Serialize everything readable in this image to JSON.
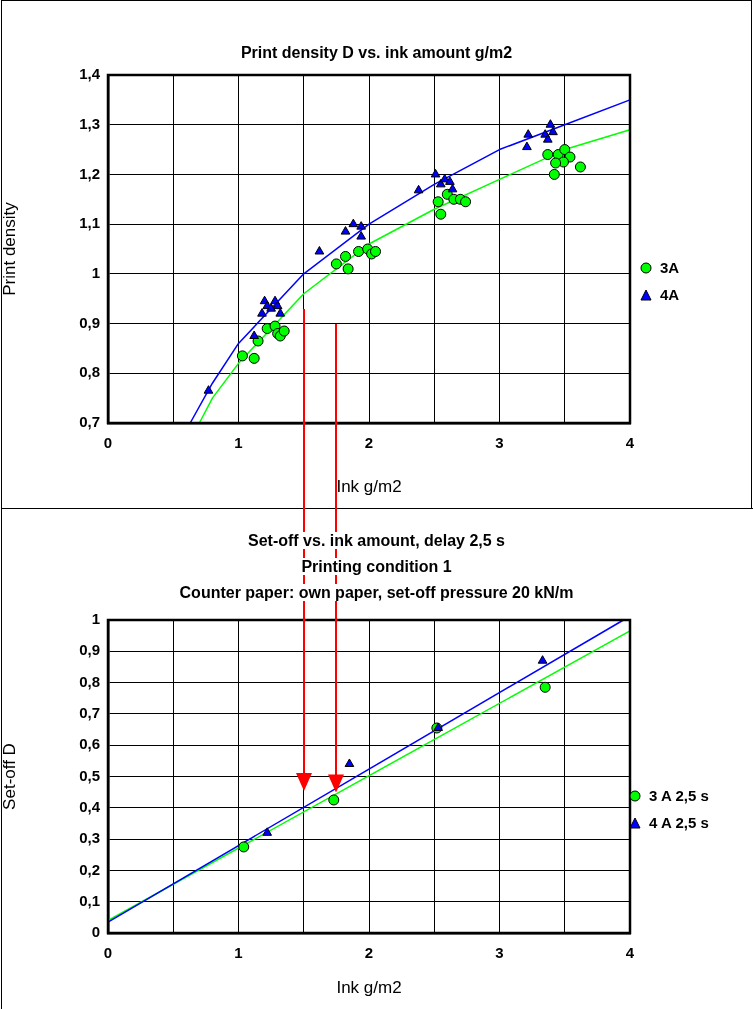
{
  "chart_data": [
    {
      "type": "scatter",
      "title": "Print density D vs. ink amount g/m2",
      "xlabel": "Ink g/m2",
      "ylabel": "Print density",
      "xlim": [
        0,
        4
      ],
      "xticks": [
        0,
        {
          "value": 0.5,
          "label": null
        },
        1,
        {
          "value": 1.5,
          "label": null
        },
        2,
        {
          "value": 2.5,
          "label": null
        },
        3,
        {
          "value": 3.5,
          "label": null
        },
        4
      ],
      "ylim": [
        0.7,
        1.4
      ],
      "yticks": [
        {
          "value": 0.7,
          "label": "0,7"
        },
        {
          "value": 0.8,
          "label": "0,8"
        },
        {
          "value": 0.9,
          "label": "0,9"
        },
        {
          "value": 1,
          "label": "1"
        },
        {
          "value": 1.1,
          "label": "1,1"
        },
        {
          "value": 1.2,
          "label": "1,2"
        },
        {
          "value": 1.3,
          "label": "1,3"
        },
        {
          "value": 1.4,
          "label": "1,4"
        }
      ],
      "grid": true,
      "legend": "right",
      "series": [
        {
          "name": "3A",
          "color": "#00ff00",
          "marker": "circle",
          "x": [
            1.03,
            1.12,
            1.15,
            1.22,
            1.28,
            1.3,
            1.32,
            1.35,
            1.75,
            1.82,
            1.84,
            1.92,
            1.99,
            2.02,
            2.05,
            2.53,
            2.55,
            2.6,
            2.65,
            2.7,
            2.74,
            3.37,
            3.45,
            3.5,
            3.54,
            3.49,
            3.43,
            3.42,
            3.62
          ],
          "values": [
            0.835,
            0.83,
            0.865,
            0.89,
            0.895,
            0.88,
            0.875,
            0.885,
            1.02,
            1.035,
            1.01,
            1.045,
            1.05,
            1.04,
            1.045,
            1.145,
            1.12,
            1.16,
            1.15,
            1.15,
            1.145,
            1.24,
            1.24,
            1.25,
            1.235,
            1.225,
            1.223,
            1.2,
            1.215
          ]
        },
        {
          "name": "4A",
          "color": "#0000ff",
          "marker": "triangle",
          "x": [
            0.77,
            1.12,
            1.18,
            1.2,
            1.22,
            1.25,
            1.28,
            1.3,
            1.32,
            1.62,
            1.82,
            1.88,
            1.94,
            1.94,
            2.38,
            2.51,
            2.55,
            2.58,
            2.62,
            2.64,
            3.22,
            3.21,
            3.39,
            3.35,
            3.37,
            3.41
          ],
          "values": [
            0.765,
            0.875,
            0.92,
            0.945,
            0.935,
            0.93,
            0.945,
            0.935,
            0.92,
            1.045,
            1.085,
            1.1,
            1.095,
            1.075,
            1.168,
            1.2,
            1.18,
            1.19,
            1.185,
            1.17,
            1.28,
            1.255,
            1.3,
            1.28,
            1.27,
            1.285
          ]
        },
        {
          "type": "line",
          "color": "#0000ff",
          "marker": "none",
          "x": [
            0.63,
            0.8,
            1,
            1.5,
            2,
            2.5,
            3,
            3.5,
            4
          ],
          "values": [
            0.7,
            0.78,
            0.86,
            1.0,
            1.1,
            1.18,
            1.25,
            1.3,
            1.35
          ]
        },
        {
          "type": "line",
          "color": "#00ff00",
          "marker": "none",
          "x": [
            0.7,
            0.8,
            1,
            1.5,
            2,
            2.5,
            3,
            3.5,
            4
          ],
          "values": [
            0.7,
            0.75,
            0.82,
            0.96,
            1.06,
            1.13,
            1.19,
            1.25,
            1.29
          ]
        }
      ]
    },
    {
      "type": "scatter",
      "title": "Set-off vs. ink amount, delay 2,5 s",
      "subtitle": "Printing condition 1\nCounter paper: own paper, set-off pressure 20 kN/m",
      "xlabel": "Ink g/m2",
      "ylabel": "Set-off D",
      "xlim": [
        0,
        4
      ],
      "xticks": [
        0,
        {
          "value": 0.5,
          "label": null
        },
        1,
        {
          "value": 1.5,
          "label": null
        },
        2,
        {
          "value": 2.5,
          "label": null
        },
        3,
        {
          "value": 3.5,
          "label": null
        },
        4
      ],
      "ylim": [
        0,
        1
      ],
      "yticks": [
        0,
        {
          "value": 0.1,
          "label": "0,1"
        },
        {
          "value": 0.2,
          "label": "0,2"
        },
        {
          "value": 0.3,
          "label": "0,3"
        },
        {
          "value": 0.4,
          "label": "0,4"
        },
        {
          "value": 0.5,
          "label": "0,5"
        },
        {
          "value": 0.6,
          "label": "0,6"
        },
        {
          "value": 0.7,
          "label": "0,7"
        },
        {
          "value": 0.8,
          "label": "0,8"
        },
        {
          "value": 0.9,
          "label": "0,9"
        },
        1
      ],
      "grid": true,
      "legend": "right",
      "series": [
        {
          "name": "3 A 2,5 s",
          "color": "#00ff00",
          "marker": "circle",
          "x": [
            1.04,
            1.73,
            2.52,
            3.35
          ],
          "values": [
            0.275,
            0.425,
            0.655,
            0.785
          ]
        },
        {
          "name": "4 A 2,5 s",
          "color": "#0000ff",
          "marker": "triangle",
          "x": [
            1.22,
            1.85,
            2.53,
            3.33
          ],
          "values": [
            0.32,
            0.54,
            0.655,
            0.87
          ]
        },
        {
          "type": "line",
          "color": "#0000ff",
          "marker": "none",
          "x": [
            0,
            3.95
          ],
          "values": [
            0.035,
            1
          ]
        },
        {
          "type": "line",
          "color": "#00ff00",
          "marker": "none",
          "x": [
            0,
            4
          ],
          "values": [
            0.04,
            0.965
          ]
        }
      ]
    }
  ]
}
